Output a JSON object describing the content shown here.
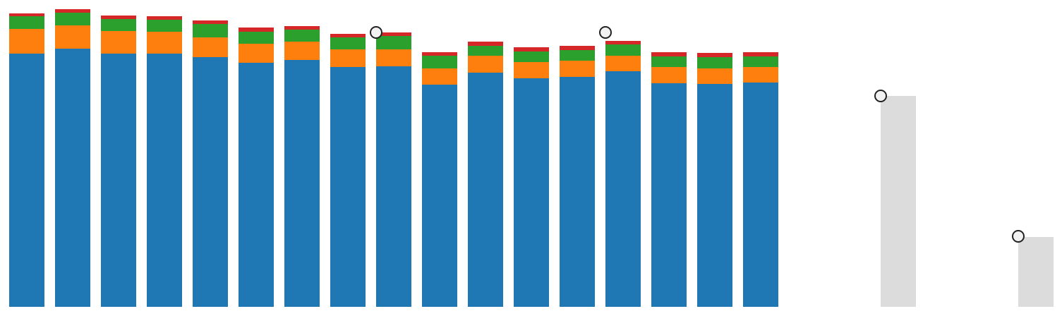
{
  "chart_data": {
    "type": "bar",
    "stacked": true,
    "title": "",
    "xlabel": "",
    "ylabel": "",
    "grid": false,
    "ylim": [
      0,
      440
    ],
    "colors": {
      "blue": "#1f77b4",
      "orange": "#ff7f0e",
      "green": "#2ca02c",
      "red": "#d62728",
      "gray": "#dcdcdc",
      "marker_fill": "#f2f2f2",
      "marker_stroke": "#222222"
    },
    "series": [
      {
        "color": "#1f77b4",
        "values": [
          359,
          366,
          359,
          359,
          354,
          346,
          350,
          340,
          341,
          315,
          332,
          324,
          326,
          334,
          317,
          316,
          318,
          null,
          null,
          null,
          null
        ]
      },
      {
        "color": "#ff7f0e",
        "values": [
          35,
          33,
          32,
          31,
          28,
          27,
          26,
          25,
          24,
          23,
          24,
          23,
          23,
          22,
          23,
          22,
          22,
          null,
          null,
          null,
          null
        ]
      },
      {
        "color": "#2ca02c",
        "values": [
          18,
          18,
          17,
          17,
          19,
          17,
          17,
          17,
          19,
          18,
          14,
          15,
          15,
          16,
          15,
          16,
          15,
          null,
          null,
          null,
          null
        ]
      },
      {
        "color": "#d62728",
        "values": [
          4,
          5,
          5,
          5,
          5,
          6,
          5,
          5,
          5,
          5,
          6,
          6,
          6,
          5,
          6,
          6,
          6,
          null,
          null,
          null,
          null
        ]
      }
    ],
    "gray_bars": [
      {
        "index": 19,
        "value": 299
      },
      {
        "index": 22,
        "value": 99
      }
    ],
    "markers": [
      {
        "index": 8,
        "value": 389
      },
      {
        "index": 13,
        "value": 389
      },
      {
        "index": 19,
        "value": 299
      },
      {
        "index": 22,
        "value": 100
      }
    ]
  }
}
